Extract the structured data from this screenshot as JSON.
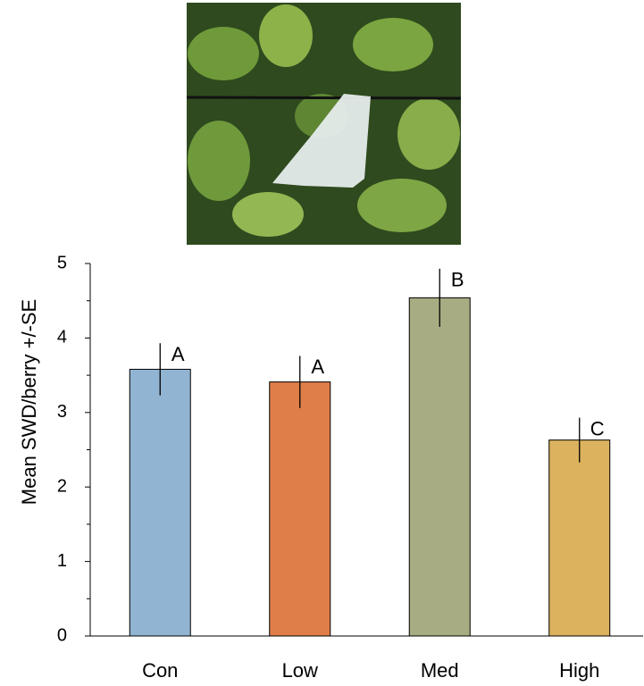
{
  "chart_data": {
    "type": "bar",
    "y_label": "Mean SWD/berry +/-SE",
    "categories": [
      "Con",
      "Low",
      "Med",
      "High"
    ],
    "values": [
      3.58,
      3.41,
      4.54,
      2.63
    ],
    "errors": [
      0.35,
      0.35,
      0.39,
      0.3
    ],
    "annotations": [
      "A",
      "A",
      "B",
      "C"
    ],
    "colors": [
      "#92b4d3",
      "#e07e49",
      "#a8ac82",
      "#dcb25e"
    ],
    "ylim": [
      0,
      5
    ],
    "yticks": [
      0,
      1,
      2,
      3,
      4,
      5
    ],
    "yminorticks": [
      0.5,
      1.5,
      2.5,
      3.5,
      4.5
    ],
    "grid": false
  }
}
